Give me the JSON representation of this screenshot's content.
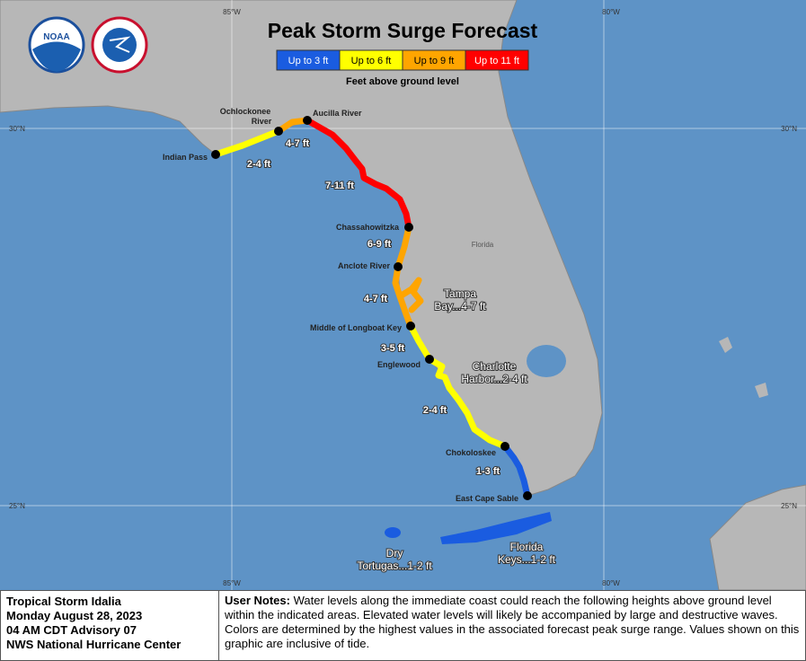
{
  "header": {
    "title": "Peak Storm Surge Forecast",
    "logo_text": "NOAA",
    "legend": [
      {
        "label": "Up to 3 ft",
        "color": "#1a5ce0"
      },
      {
        "label": "Up to 6 ft",
        "color": "#ffff00"
      },
      {
        "label": "Up to 9 ft",
        "color": "#ffa500"
      },
      {
        "label": "Up to 11 ft",
        "color": "#ff0000"
      }
    ],
    "legend_caption": "Feet above ground level"
  },
  "map": {
    "grid_labels": {
      "lon_85_top": "85°W",
      "lon_80_top": "80°W",
      "lon_85_bottom": "85°W",
      "lon_80_bottom": "80°W",
      "lat_30_left": "30°N",
      "lat_30_right": "30°N",
      "lat_25_left": "25°N",
      "lat_25_right": "25°N"
    },
    "state_label": "Florida",
    "locations": [
      {
        "label": [
          "Indian Pass"
        ]
      },
      {
        "label": [
          "Ochlockonee",
          "River"
        ]
      },
      {
        "label": [
          "Aucilla River"
        ]
      },
      {
        "label": [
          "Chassahowitzka"
        ]
      },
      {
        "label": [
          "Anclote River"
        ]
      },
      {
        "label": [
          "Middle of Longboat Key"
        ]
      },
      {
        "label": [
          "Englewood"
        ]
      },
      {
        "label": [
          "Chokoloskee"
        ]
      },
      {
        "label": [
          "East Cape Sable"
        ]
      }
    ],
    "surge_ranges": [
      "2-4 ft",
      "4-7 ft",
      "7-11 ft",
      "6-9 ft",
      "4-7 ft",
      "3-5 ft",
      "2-4 ft",
      "1-3 ft"
    ],
    "area_labels": [
      {
        "label": [
          "Tampa",
          "Bay...4-7 ft"
        ]
      },
      {
        "label": [
          "Charlotte",
          "Harbor...2-4 ft"
        ]
      },
      {
        "label": [
          "Dry",
          "Tortugas...1-2 ft"
        ]
      },
      {
        "label": [
          "Florida",
          "Keys...1-2 ft"
        ]
      }
    ]
  },
  "footer": {
    "storm": [
      "Tropical Storm Idalia",
      "Monday August 28, 2023",
      "04 AM CDT Advisory 07",
      "NWS National Hurricane Center"
    ],
    "notes_heading": "User Notes:",
    "notes": "Water levels along the immediate coast could reach the following heights above ground level within the indicated areas. Elevated water levels will likely be accompanied by large and destructive waves. Colors are determined by the highest values in the associated forecast peak surge range. Values shown on this graphic are inclusive of tide."
  }
}
